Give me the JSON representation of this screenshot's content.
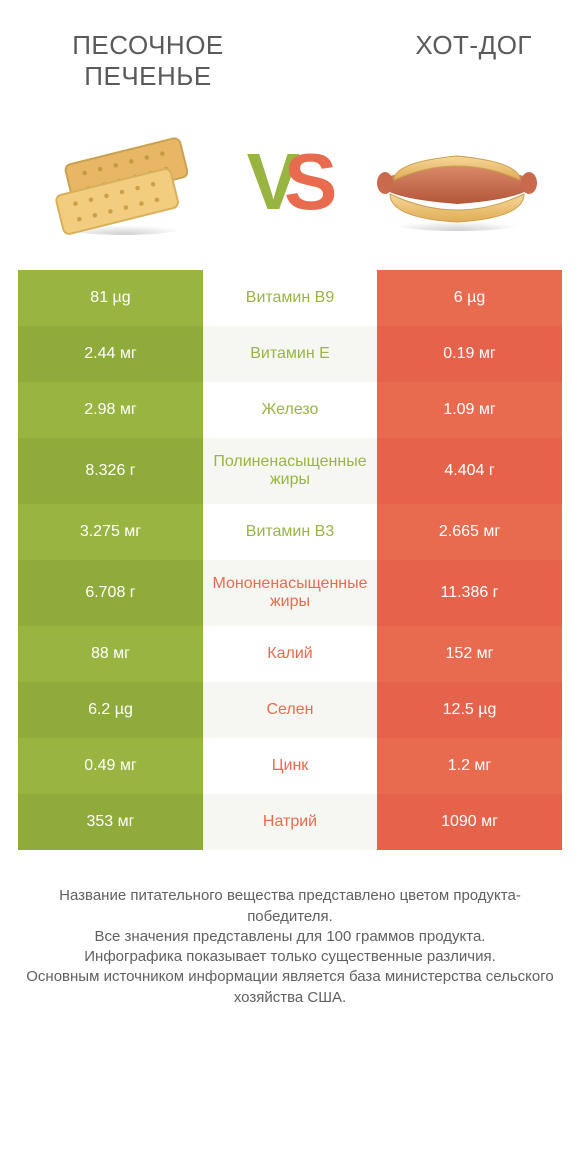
{
  "colors": {
    "left": "#99b541",
    "right": "#e96b4f",
    "left_alt": "#8fab3b",
    "right_alt": "#e5634a",
    "mid_alt": "#f6f6f2",
    "title": "#5a5a5a",
    "footer_text": "#606060"
  },
  "header": {
    "left_title": "ПЕСОЧНОЕ ПЕЧЕНЬЕ",
    "right_title": "ХОТ-ДОГ",
    "title_fontsize": 26,
    "vs_v_color": "#99b541",
    "vs_s_color": "#e96b4f"
  },
  "rows": [
    {
      "left": "81 µg",
      "label": "Витамин B9",
      "right": "6 µg",
      "winner": "left"
    },
    {
      "left": "2.44 мг",
      "label": "Витамин E",
      "right": "0.19 мг",
      "winner": "left"
    },
    {
      "left": "2.98 мг",
      "label": "Железо",
      "right": "1.09 мг",
      "winner": "left"
    },
    {
      "left": "8.326 г",
      "label": "Полиненасыщенные жиры",
      "right": "4.404 г",
      "winner": "left",
      "tall": true
    },
    {
      "left": "3.275 мг",
      "label": "Витамин B3",
      "right": "2.665 мг",
      "winner": "left"
    },
    {
      "left": "6.708 г",
      "label": "Мононенасыщенные жиры",
      "right": "11.386 г",
      "winner": "right",
      "tall": true
    },
    {
      "left": "88 мг",
      "label": "Калий",
      "right": "152 мг",
      "winner": "right"
    },
    {
      "left": "6.2 µg",
      "label": "Селен",
      "right": "12.5 µg",
      "winner": "right"
    },
    {
      "left": "0.49 мг",
      "label": "Цинк",
      "right": "1.2 мг",
      "winner": "right"
    },
    {
      "left": "353 мг",
      "label": "Натрий",
      "right": "1090 мг",
      "winner": "right"
    }
  ],
  "footer_lines": [
    "Название питательного вещества представлено цветом продукта-победителя.",
    "Все значения представлены для 100 граммов продукта.",
    "Инфографика показывает только существенные различия.",
    "Основным источником информации является база министерства сельского хозяйства США."
  ]
}
